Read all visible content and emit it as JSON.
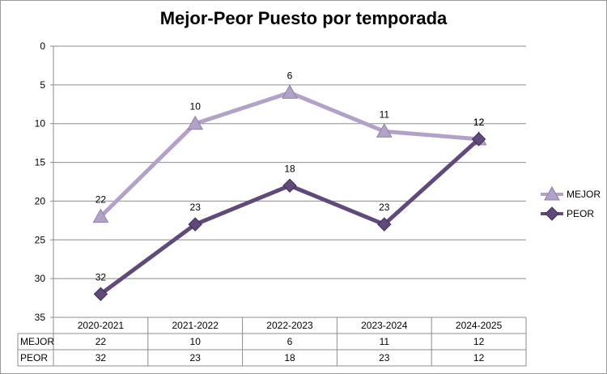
{
  "chart_data": {
    "type": "line",
    "title": "Mejor-Peor Puesto por temporada",
    "categories": [
      "2020-2021",
      "2021-2022",
      "2022-2023",
      "2023-2024",
      "2024-2025"
    ],
    "series": [
      {
        "name": "MEJOR",
        "values": [
          22,
          10,
          6,
          11,
          12
        ],
        "color": "#b3a2c7",
        "marker": "triangle"
      },
      {
        "name": "PEOR",
        "values": [
          32,
          23,
          18,
          23,
          12
        ],
        "color": "#604a7b",
        "marker": "diamond"
      }
    ],
    "ylim": [
      0,
      35
    ],
    "y_reversed": true,
    "y_ticks": [
      "0",
      "5",
      "10",
      "15",
      "20",
      "25",
      "30",
      "35"
    ],
    "grid": true,
    "legend": "right",
    "data_table": true
  }
}
